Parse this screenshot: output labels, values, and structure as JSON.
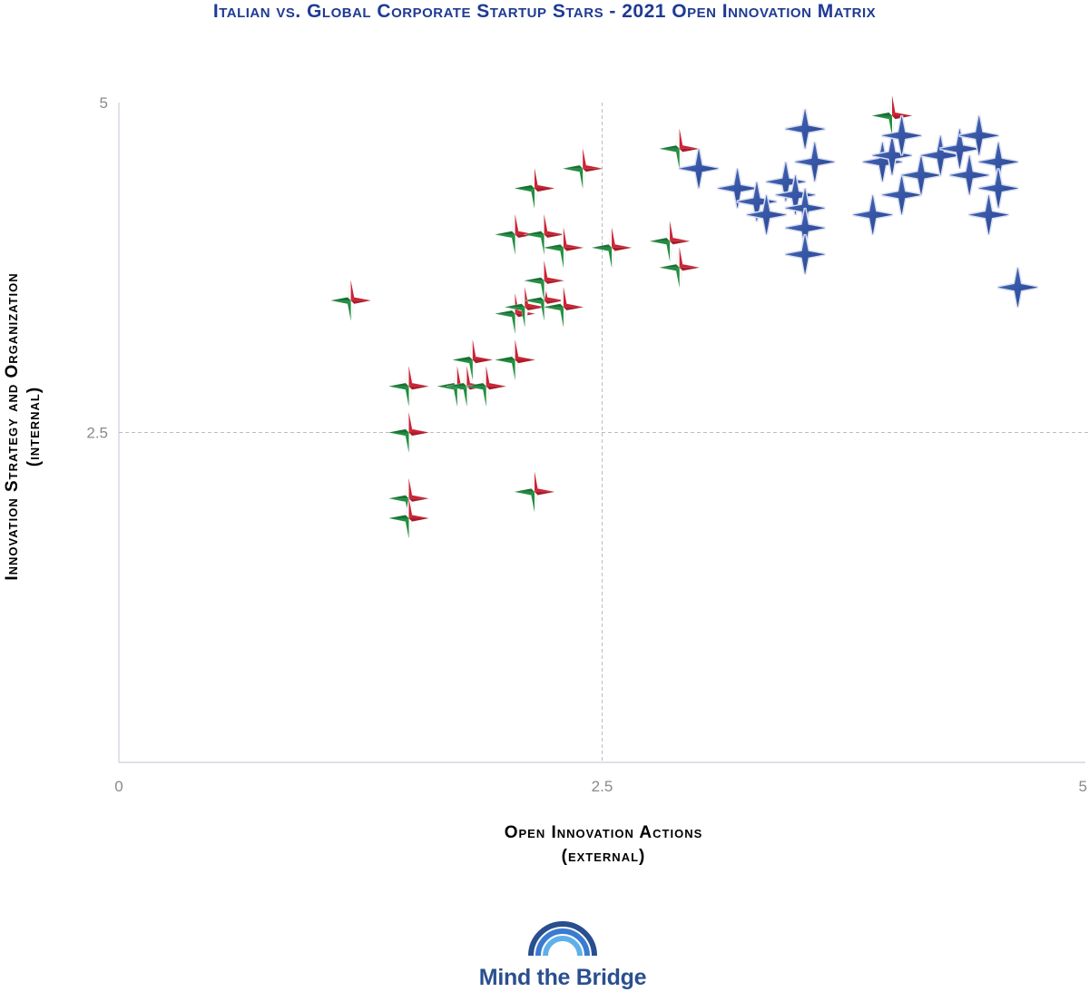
{
  "chart_data": {
    "type": "scatter",
    "title": "Italian vs. Global Corporate Startup Stars - 2021 Open Innovation Matrix",
    "xlabel": [
      "Open Innovation Actions",
      "(external)"
    ],
    "ylabel": [
      "Innovation Strategy and Organization",
      "(internal)"
    ],
    "xlim": [
      0,
      5
    ],
    "ylim": [
      0,
      5
    ],
    "xticks": [
      "0",
      "2.5",
      "5"
    ],
    "yticks": [
      "2.5",
      "5"
    ],
    "gridlines": {
      "x": 2.5,
      "y": 2.5,
      "style": "dashed"
    },
    "series": [
      {
        "marker": "italian-flag-star",
        "colors": [
          "#1e8e3e",
          "#ffffff",
          "#cc2233"
        ],
        "points": [
          [
            1.2,
            3.5
          ],
          [
            1.5,
            2.85
          ],
          [
            1.5,
            2.5
          ],
          [
            1.5,
            2.0
          ],
          [
            1.5,
            1.85
          ],
          [
            1.75,
            2.85
          ],
          [
            1.8,
            2.85
          ],
          [
            1.83,
            3.05
          ],
          [
            1.9,
            2.85
          ],
          [
            2.05,
            3.05
          ],
          [
            2.05,
            3.4
          ],
          [
            2.05,
            4.0
          ],
          [
            2.1,
            3.45
          ],
          [
            2.15,
            4.35
          ],
          [
            2.15,
            2.05
          ],
          [
            2.2,
            3.5
          ],
          [
            2.2,
            3.65
          ],
          [
            2.2,
            4.0
          ],
          [
            2.3,
            3.9
          ],
          [
            2.3,
            3.45
          ],
          [
            2.4,
            4.5
          ],
          [
            2.55,
            3.9
          ],
          [
            2.85,
            3.95
          ],
          [
            2.9,
            4.65
          ],
          [
            2.9,
            3.75
          ],
          [
            4.0,
            4.9
          ]
        ]
      },
      {
        "marker": "blue-star",
        "colors": [
          "#2e4d99"
        ],
        "points": [
          [
            3.0,
            4.5
          ],
          [
            3.2,
            4.35
          ],
          [
            3.3,
            4.25
          ],
          [
            3.35,
            4.15
          ],
          [
            3.45,
            4.4
          ],
          [
            3.5,
            4.3
          ],
          [
            3.55,
            4.2
          ],
          [
            3.55,
            4.05
          ],
          [
            3.55,
            3.85
          ],
          [
            3.55,
            4.8
          ],
          [
            3.6,
            4.55
          ],
          [
            3.9,
            4.15
          ],
          [
            3.95,
            4.55
          ],
          [
            4.0,
            4.6
          ],
          [
            4.05,
            4.3
          ],
          [
            4.05,
            4.75
          ],
          [
            4.15,
            4.45
          ],
          [
            4.25,
            4.6
          ],
          [
            4.35,
            4.65
          ],
          [
            4.4,
            4.45
          ],
          [
            4.45,
            4.75
          ],
          [
            4.5,
            4.15
          ],
          [
            4.55,
            4.55
          ],
          [
            4.55,
            4.35
          ],
          [
            4.65,
            3.6
          ]
        ]
      }
    ]
  },
  "logo": {
    "text": "Mind the Bridge"
  }
}
